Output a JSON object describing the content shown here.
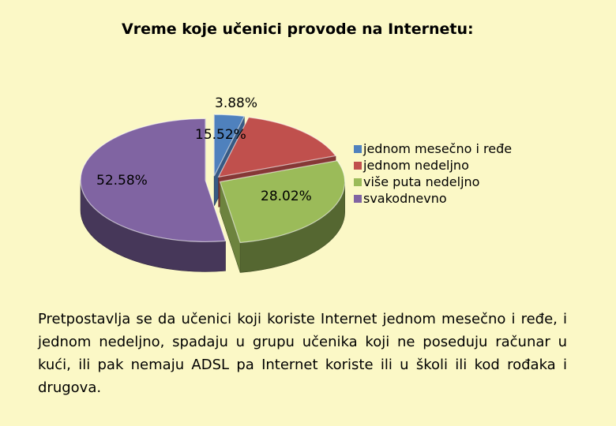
{
  "chart_data": {
    "type": "pie",
    "title": "Vreme koje učenici provode na Internetu:",
    "unit": "%",
    "legend_position": "right",
    "slices": [
      {
        "label": "jednom mesečno i ređe",
        "value": 3.88,
        "value_label": "3.88%",
        "color": "#4f81bd",
        "exploded": true
      },
      {
        "label": "jednom nedeljno",
        "value": 15.52,
        "value_label": "15.52%",
        "color": "#c0504d",
        "exploded": true
      },
      {
        "label": "više puta nedeljno",
        "value": 28.02,
        "value_label": "28.02%",
        "color": "#9bbb59",
        "exploded": true
      },
      {
        "label": "svakodnevno",
        "value": 52.58,
        "value_label": "52.58%",
        "color": "#8064a2",
        "exploded": true
      }
    ]
  },
  "caption": "Pretpostavlja se da učenici koji koriste Internet jednom mesečno i ređe, i jednom nedeljno, spadaju u grupu učenika koji ne poseduju računar u kući, ili pak nemaju ADSL pa Internet koriste ili u školi ili kod rođaka i drugova."
}
